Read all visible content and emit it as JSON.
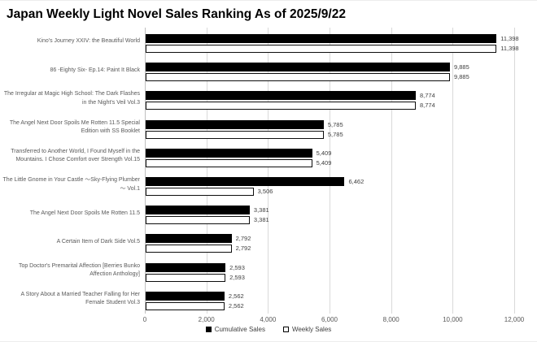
{
  "title": "Japan Weekly Light Novel Sales Ranking As of 2025/9/22",
  "chart_data": {
    "type": "bar",
    "orientation": "horizontal",
    "title": "Japan Weekly Light Novel Sales Ranking As of 2025/9/22",
    "categories": [
      "Kino's Journey XXIV: the Beautiful World",
      "86 -Eighty Six- Ep.14: Paint It Black",
      "The Irregular at Magic High School: The Dark Flashes in the Night's Veil Vol.3",
      "The Angel Next Door Spoils Me Rotten 11.5 Special Edition with SS Booklet",
      "Transferred to Another World, I Found Myself in the Mountains. I Chose Comfort over Strength Vol.15",
      "The Little Gnome in Your Castle ～Sky-Flying Plumber～ Vol.1",
      "The Angel Next Door Spoils Me Rotten 11.5",
      "A Certain Item of Dark Side Vol.5",
      "Top Doctor's Premarital Affection [Berries Bunko Affection Anthology]",
      "A Story About a Married Teacher Falling for Her Female Student Vol.3"
    ],
    "series": [
      {
        "name": "Cumulative Sales",
        "fill": "solid",
        "color": "#000000",
        "values": [
          11398,
          9885,
          8774,
          5785,
          5409,
          6462,
          3381,
          2792,
          2593,
          2562
        ]
      },
      {
        "name": "Weekly Sales",
        "fill": "outline",
        "color": "#ffffff",
        "border_color": "#000000",
        "values": [
          11398,
          9885,
          8774,
          5785,
          5409,
          3506,
          3381,
          2792,
          2593,
          2562
        ]
      }
    ],
    "data_labels": [
      [
        "11,398",
        "9,885",
        "8,774",
        "5,785",
        "5,409",
        "6,462",
        "3,381",
        "2,792",
        "2,593",
        "2,562"
      ],
      [
        "11,398",
        "9,885",
        "8,774",
        "5,785",
        "5,409",
        "3,506",
        "3,381",
        "2,792",
        "2,593",
        "2,562"
      ]
    ],
    "xlim": [
      0,
      12000
    ],
    "x_ticks": [
      0,
      2000,
      4000,
      6000,
      8000,
      10000,
      12000
    ],
    "x_tick_labels": [
      "0",
      "2,000",
      "4,000",
      "6,000",
      "8,000",
      "10,000",
      "12,000"
    ],
    "grid": true,
    "legend_position": "bottom"
  },
  "legend": {
    "items": [
      {
        "label": "Cumulative Sales",
        "swatch": "solid-black-square"
      },
      {
        "label": "Weekly Sales",
        "swatch": "outlined-white-square"
      }
    ]
  },
  "colors": {
    "background": "#ffffff",
    "bar_fill": "#000000",
    "bar_outline": "#000000",
    "gridline": "#d9d9d9",
    "axis_line": "#bfbfbf",
    "category_text": "#595959",
    "value_text": "#404040",
    "tick_text": "#595959",
    "title_text": "#000000"
  }
}
